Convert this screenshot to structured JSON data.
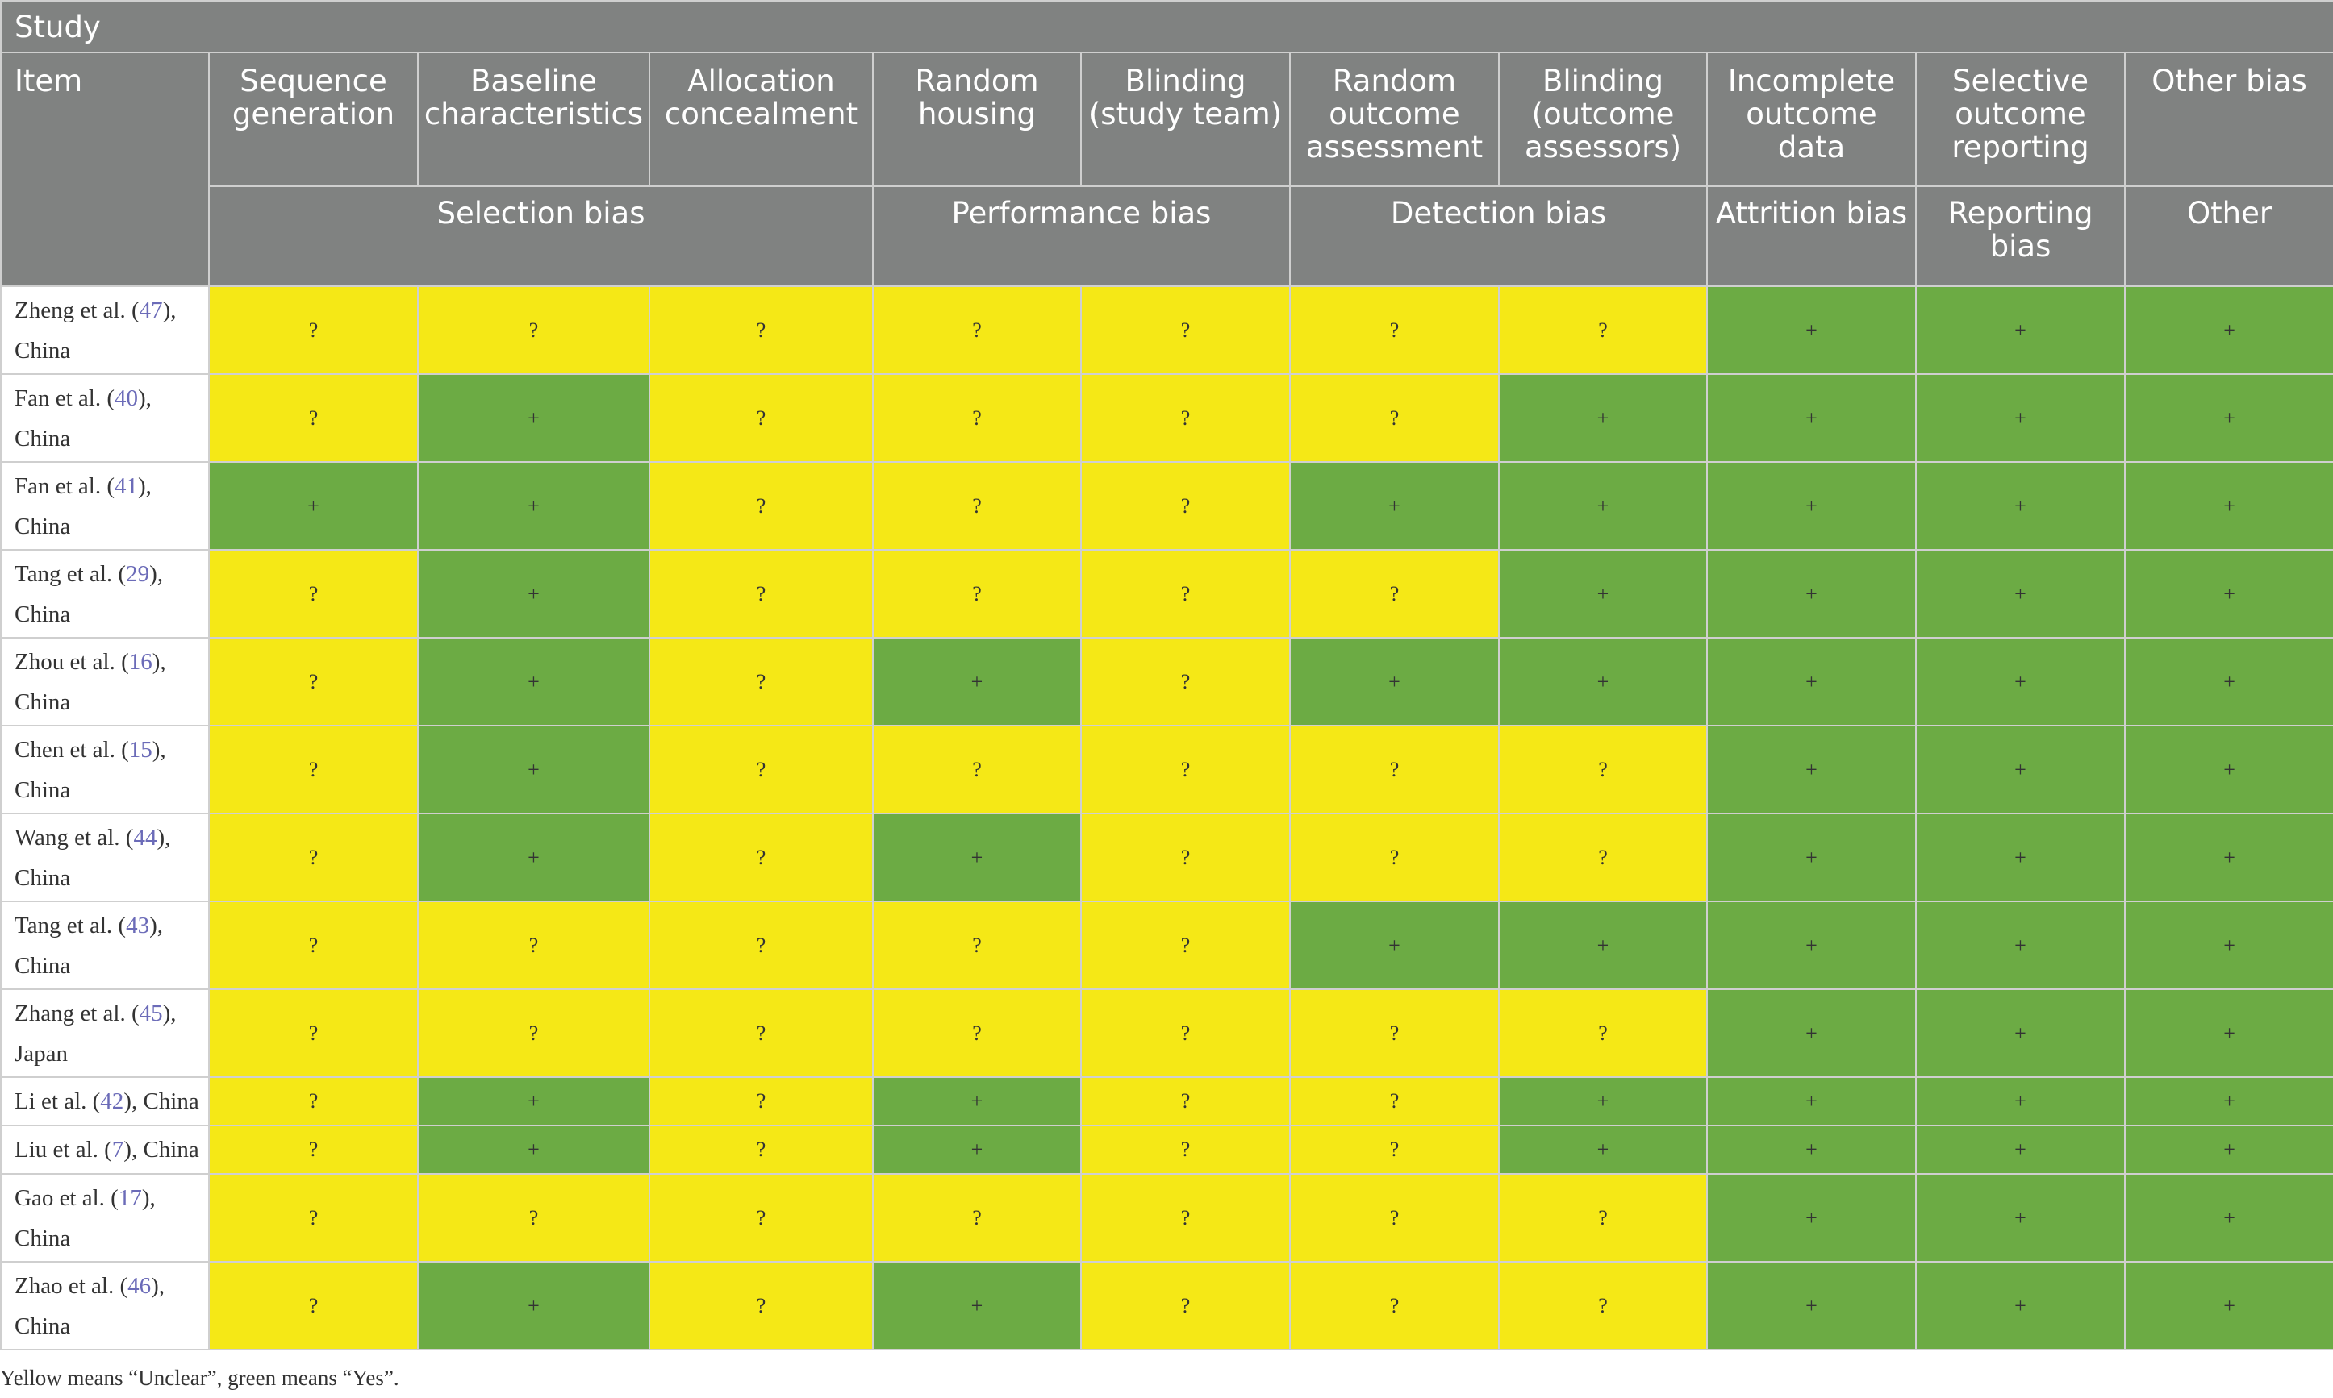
{
  "header": {
    "study_label": "Study",
    "item_label": "Item",
    "columns": [
      "Sequence generation",
      "Baseline characteristics",
      "Allocation concealment",
      "Random housing",
      "Blinding (study team)",
      "Random outcome assessment",
      "Blinding (outcome assessors)",
      "Incomplete outcome data",
      "Selective outcome reporting",
      "Other bias"
    ],
    "groups": [
      {
        "label": "Selection bias",
        "span": 3
      },
      {
        "label": "Performance bias",
        "span": 2
      },
      {
        "label": "Detection bias",
        "span": 2
      },
      {
        "label": "Attrition bias",
        "span": 1
      },
      {
        "label": "Reporting bias",
        "span": 1
      },
      {
        "label": "Other",
        "span": 1
      }
    ]
  },
  "legend": {
    "unclear": {
      "symbol": "?",
      "color": "#f5e816"
    },
    "yes": {
      "symbol": "+",
      "color": "#6cab44"
    }
  },
  "rows": [
    {
      "author": "Zheng et al. (",
      "ref": "47",
      "loc": "), China",
      "tall": true,
      "ratings": [
        "?",
        "?",
        "?",
        "?",
        "?",
        "?",
        "?",
        "+",
        "+",
        "+"
      ]
    },
    {
      "author": "Fan et al. (",
      "ref": "40",
      "loc": "), China",
      "tall": true,
      "ratings": [
        "?",
        "+",
        "?",
        "?",
        "?",
        "?",
        "+",
        "+",
        "+",
        "+"
      ]
    },
    {
      "author": "Fan et al. (",
      "ref": "41",
      "loc": "), China",
      "tall": true,
      "ratings": [
        "+",
        "+",
        "?",
        "?",
        "?",
        "+",
        "+",
        "+",
        "+",
        "+"
      ]
    },
    {
      "author": "Tang et al. (",
      "ref": "29",
      "loc": "), China",
      "tall": true,
      "ratings": [
        "?",
        "+",
        "?",
        "?",
        "?",
        "?",
        "+",
        "+",
        "+",
        "+"
      ]
    },
    {
      "author": "Zhou et al. (",
      "ref": "16",
      "loc": "), China",
      "tall": true,
      "ratings": [
        "?",
        "+",
        "?",
        "+",
        "?",
        "+",
        "+",
        "+",
        "+",
        "+"
      ]
    },
    {
      "author": "Chen et al. (",
      "ref": "15",
      "loc": "), China",
      "tall": true,
      "ratings": [
        "?",
        "+",
        "?",
        "?",
        "?",
        "?",
        "?",
        "+",
        "+",
        "+"
      ]
    },
    {
      "author": "Wang et al. (",
      "ref": "44",
      "loc": "), China",
      "tall": true,
      "ratings": [
        "?",
        "+",
        "?",
        "+",
        "?",
        "?",
        "?",
        "+",
        "+",
        "+"
      ]
    },
    {
      "author": "Tang et al. (",
      "ref": "43",
      "loc": "), China",
      "tall": true,
      "ratings": [
        "?",
        "?",
        "?",
        "?",
        "?",
        "+",
        "+",
        "+",
        "+",
        "+"
      ]
    },
    {
      "author": "Zhang et al. (",
      "ref": "45",
      "loc": "), Japan",
      "tall": true,
      "ratings": [
        "?",
        "?",
        "?",
        "?",
        "?",
        "?",
        "?",
        "+",
        "+",
        "+"
      ]
    },
    {
      "author": "Li et al. (",
      "ref": "42",
      "loc": "), China",
      "tall": false,
      "ratings": [
        "?",
        "+",
        "?",
        "+",
        "?",
        "?",
        "+",
        "+",
        "+",
        "+"
      ]
    },
    {
      "author": "Liu et al. (",
      "ref": "7",
      "loc": "), China",
      "tall": false,
      "ratings": [
        "?",
        "+",
        "?",
        "+",
        "?",
        "?",
        "+",
        "+",
        "+",
        "+"
      ]
    },
    {
      "author": "Gao et al. (",
      "ref": "17",
      "loc": "), China",
      "tall": true,
      "ratings": [
        "?",
        "?",
        "?",
        "?",
        "?",
        "?",
        "?",
        "+",
        "+",
        "+"
      ]
    },
    {
      "author": "Zhao et al. (",
      "ref": "46",
      "loc": "), China",
      "tall": true,
      "ratings": [
        "?",
        "+",
        "?",
        "+",
        "?",
        "?",
        "?",
        "+",
        "+",
        "+"
      ]
    }
  ],
  "note": "Yellow means “Unclear”, green means “Yes”."
}
